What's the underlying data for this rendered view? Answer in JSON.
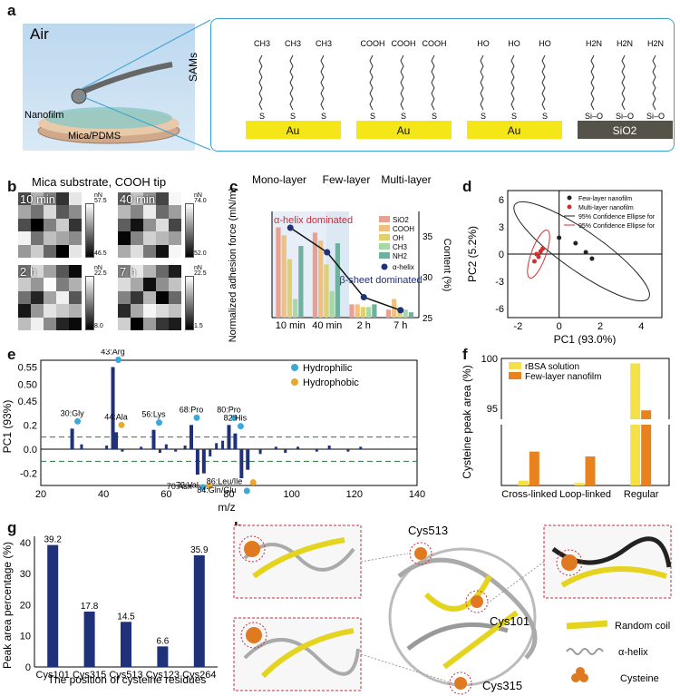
{
  "panel_letters": {
    "a": "a",
    "b": "b",
    "c": "c",
    "d": "d",
    "e": "e",
    "f": "f",
    "g": "g",
    "h": "h"
  },
  "panel_a": {
    "air_label": "Air",
    "nanofilm_label": "Nanofilm",
    "substrate_label": "Mica/PDMS",
    "sams_label": "SAMs",
    "groups": [
      {
        "head": "CH3",
        "anchor": "S",
        "base": "Au"
      },
      {
        "head": "COOH",
        "anchor": "S",
        "base": "Au"
      },
      {
        "head": "HO",
        "anchor": "S",
        "base": "Au"
      },
      {
        "head": "H2N",
        "anchor": "Si–O",
        "base": "SiO2"
      }
    ]
  },
  "panel_b": {
    "title": "Mica substrate, COOH tip",
    "maps": [
      {
        "time": "10 min",
        "unit": "nN",
        "max": "57.5",
        "min": "46.5"
      },
      {
        "time": "40 min",
        "unit": "nN",
        "max": "74.0",
        "min": "52.0"
      },
      {
        "time": "2 h",
        "unit": "nN",
        "max": "22.5",
        "min": "8.0"
      },
      {
        "time": "7 h",
        "unit": "nN",
        "max": "22.5",
        "min": "1.5"
      }
    ]
  },
  "chart_data": [
    {
      "id": "c",
      "type": "bar",
      "title": "",
      "top_labels": [
        "Mono-layer",
        "Few-layer",
        "Multi-layer"
      ],
      "annotations": [
        "α-helix dominated",
        "β-sheet dominated"
      ],
      "categories": [
        "10 min",
        "40 min",
        "2 h",
        "7 h"
      ],
      "ylabel": "Normalized adhesion force (mN/m)",
      "ylim": [
        0,
        40
      ],
      "y2label": "Content (%)",
      "y2lim": [
        25,
        38
      ],
      "y2ticks": [
        "25",
        "30",
        "35"
      ],
      "series": [
        {
          "name": "SiO2",
          "color": "#e8a090",
          "values": [
            34,
            32,
            5,
            3
          ]
        },
        {
          "name": "COOH",
          "color": "#f0c080",
          "values": [
            31,
            29,
            5,
            7
          ]
        },
        {
          "name": "OH",
          "color": "#e0d070",
          "values": [
            22,
            20,
            4,
            4
          ]
        },
        {
          "name": "CH3",
          "color": "#a8d8a8",
          "values": [
            7,
            10,
            4,
            3
          ]
        },
        {
          "name": "NH2",
          "color": "#70b0a0",
          "values": [
            27,
            28,
            5,
            2
          ]
        }
      ],
      "line": {
        "name": "α-helix",
        "values": [
          36,
          33,
          27.5,
          25.9
        ]
      }
    },
    {
      "id": "d",
      "type": "scatter",
      "xlabel": "PC1 (93.0%)",
      "ylabel": "PC2 (5.2%)",
      "xlim": [
        -2.5,
        5
      ],
      "ylim": [
        -7,
        7
      ],
      "xticks": [
        "-2",
        "0",
        "2",
        "4"
      ],
      "yticks": [
        "-6",
        "-3",
        "0",
        "3",
        "6"
      ],
      "legend": [
        "Few-layer nanofilm",
        "Multi-layer nanofilm",
        "95% Confidence Ellipse for",
        "95% Confidence Ellipse for"
      ],
      "series": [
        {
          "name": "Few-layer nanofilm",
          "color": "#222",
          "x": [
            0,
            0.8,
            1.3,
            1.6
          ],
          "y": [
            1.8,
            1.2,
            0.2,
            -0.5
          ]
        },
        {
          "name": "Multi-layer nanofilm",
          "color": "#d03030",
          "x": [
            -1.2,
            -1.0,
            -0.9,
            -1.1,
            -0.8
          ],
          "y": [
            -0.8,
            -0.3,
            0.3,
            0.0,
            0.6
          ]
        }
      ]
    },
    {
      "id": "e",
      "type": "bar",
      "xlabel": "m/z",
      "ylabel": "PC1 (93%)",
      "xlim": [
        20,
        140
      ],
      "xticks": [
        "20",
        "40",
        "60",
        "80",
        "100",
        "120",
        "140"
      ],
      "yticks": [
        "-0.2",
        "0.0",
        "0.2",
        "0.45",
        "0.50",
        "0.55"
      ],
      "legend": [
        "Hydrophilic",
        "Hydrophobic"
      ],
      "peaks": [
        {
          "label": "30:Gly",
          "x": 30,
          "v": 0.17,
          "type": "Hydrophilic"
        },
        {
          "label": "43:Arg",
          "x": 43,
          "v": 0.55,
          "type": "Hydrophilic"
        },
        {
          "label": "44:Ala",
          "x": 44,
          "v": 0.14,
          "type": "Hydrophobic"
        },
        {
          "label": "56:Lys",
          "x": 56,
          "v": 0.16,
          "type": "Hydrophilic"
        },
        {
          "label": "68:Pro",
          "x": 68,
          "v": 0.2,
          "type": "Hydrophilic"
        },
        {
          "label": "70:Asn",
          "x": 70,
          "v": -0.21,
          "type": "Hydrophilic"
        },
        {
          "label": "72:Val",
          "x": 72,
          "v": -0.2,
          "type": "Hydrophobic"
        },
        {
          "label": "80:Pro",
          "x": 80,
          "v": 0.2,
          "type": "Hydrophilic"
        },
        {
          "label": "82:His",
          "x": 82,
          "v": 0.13,
          "type": "Hydrophilic"
        },
        {
          "label": "86:Leu/Ile",
          "x": 86,
          "v": -0.17,
          "type": "Hydrophobic"
        },
        {
          "label": "84:Gln/Glu",
          "x": 84,
          "v": -0.24,
          "type": "Hydrophilic"
        }
      ]
    },
    {
      "id": "f",
      "type": "bar",
      "ylabel": "Cysteine peak area (%)",
      "categories": [
        "Cross-linked",
        "Loop-linked",
        "Regular"
      ],
      "yticks": [
        "95",
        "100"
      ],
      "series": [
        {
          "name": "rBSA solution",
          "color": "#f4e04a",
          "values": [
            0.4,
            0.2,
            99.5
          ]
        },
        {
          "name": "Few-layer nanofilm",
          "color": "#e8821e",
          "values": [
            2.8,
            2.4,
            94.8
          ]
        }
      ]
    },
    {
      "id": "g",
      "type": "bar",
      "xlabel": "The position of cysteine residues",
      "ylabel": "Peak area percentage (%)",
      "ylim": [
        0,
        42
      ],
      "yticks": [
        "0",
        "10",
        "20",
        "30",
        "40"
      ],
      "categories": [
        "Cys101",
        "Cys315",
        "Cys513",
        "Cys123",
        "Cys264"
      ],
      "values": [
        39.2,
        17.8,
        14.5,
        6.6,
        35.9
      ],
      "value_labels": [
        "39.2",
        "17.8",
        "14.5",
        "6.6",
        "35.9"
      ]
    }
  ],
  "panel_h": {
    "labels": [
      "Cys513",
      "Cys101",
      "Cys315"
    ],
    "legend": [
      "Random coil",
      "α-helix",
      "Cysteine"
    ]
  },
  "colors": {
    "frame_blue": "#3aa0d0",
    "gold": "#f5e61a",
    "hydrophilic": "#3aa8d8",
    "hydrophobic": "#e8a830",
    "navy": "#1f3178"
  }
}
